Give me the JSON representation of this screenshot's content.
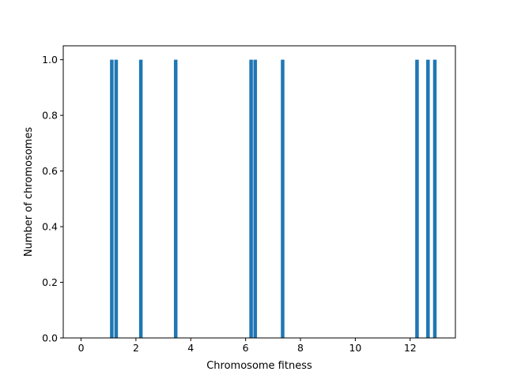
{
  "chart_data": {
    "type": "bar",
    "title": "",
    "xlabel": "Chromosome fitness",
    "ylabel": "Number of chromosomes",
    "xlim": [
      -0.65,
      13.65
    ],
    "ylim": [
      0,
      1.05
    ],
    "bar_width": 0.13,
    "bar_color": "#1f77b4",
    "x_ticks": [
      {
        "value": 0,
        "label": "0"
      },
      {
        "value": 2,
        "label": "2"
      },
      {
        "value": 4,
        "label": "4"
      },
      {
        "value": 6,
        "label": "6"
      },
      {
        "value": 8,
        "label": "8"
      },
      {
        "value": 10,
        "label": "10"
      },
      {
        "value": 12,
        "label": "12"
      }
    ],
    "y_ticks": [
      {
        "value": 0.0,
        "label": "0.0"
      },
      {
        "value": 0.2,
        "label": "0.2"
      },
      {
        "value": 0.4,
        "label": "0.4"
      },
      {
        "value": 0.6,
        "label": "0.6"
      },
      {
        "value": 0.8,
        "label": "0.8"
      },
      {
        "value": 1.0,
        "label": "1.0"
      }
    ],
    "x": [
      1.12,
      1.28,
      2.18,
      3.45,
      6.2,
      6.35,
      7.35,
      12.25,
      12.65,
      12.9
    ],
    "values": [
      1,
      1,
      1,
      1,
      1,
      1,
      1,
      1,
      1,
      1
    ],
    "grid": false
  }
}
